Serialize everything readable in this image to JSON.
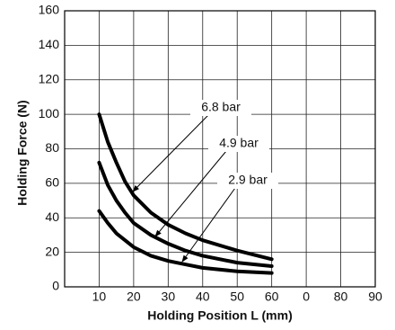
{
  "chart_data": {
    "type": "line",
    "x_label": "Holding Position L (mm)",
    "y_label": "Holding Force (N)",
    "x": [
      10,
      12.5,
      15,
      17.5,
      20,
      25,
      30,
      35,
      40,
      50,
      60
    ],
    "series": [
      {
        "name": "6.8 bar",
        "color": "#000000",
        "values": [
          100,
          84,
          72,
          61,
          53,
          43,
          36,
          31,
          27,
          21,
          16
        ]
      },
      {
        "name": "4.9 bar",
        "color": "#000000",
        "values": [
          72,
          59,
          50,
          43,
          37,
          30,
          25,
          21,
          18,
          14,
          12
        ]
      },
      {
        "name": "2.9 bar",
        "color": "#000000",
        "values": [
          44,
          37,
          31,
          27,
          23,
          18,
          15,
          13,
          11,
          9,
          8
        ]
      }
    ],
    "xlim": [
      0,
      90
    ],
    "xticks": [
      10,
      20,
      30,
      40,
      50,
      60,
      {
        "value": 70,
        "label": "0"
      },
      80,
      90
    ],
    "ylim": [
      0,
      160
    ],
    "yticks": [
      0,
      20,
      40,
      60,
      80,
      100,
      120,
      140,
      160
    ],
    "grid": true
  }
}
